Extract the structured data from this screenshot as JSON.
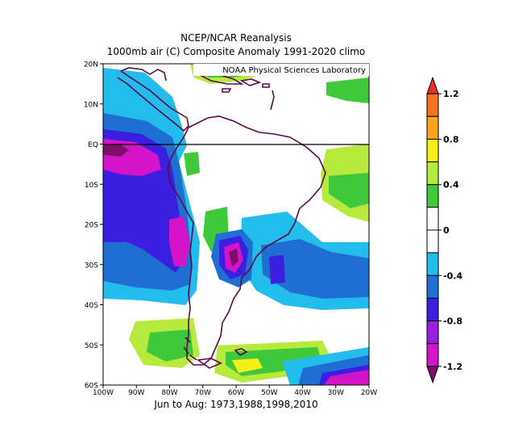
{
  "title_line1": "NCEP/NCAR Reanalysis",
  "title_line2": "1000mb air (C) Composite Anomaly 1991-2020 climo",
  "credit": "NOAA Physical Sciences Laboratory",
  "subtitle": "Jun to Aug: 1973,1988,1998,2010",
  "map": {
    "lon_range": [
      -100,
      -20
    ],
    "lat_range": [
      -60,
      20
    ],
    "lat_ticks": [
      "20N",
      "10N",
      "EQ",
      "10S",
      "20S",
      "30S",
      "40S",
      "50S",
      "60S"
    ],
    "lon_ticks": [
      "100W",
      "90W",
      "80W",
      "70W",
      "60W",
      "50W",
      "40W",
      "30W",
      "20W"
    ],
    "equator_line": true
  },
  "colorbar": {
    "labels": [
      "1.2",
      "0.8",
      "0.4",
      "0",
      "-0.4",
      "-0.8",
      "-1.2"
    ],
    "colors": [
      "#e8322b",
      "#f4731f",
      "#f9a61a",
      "#f6f01a",
      "#b8ea3e",
      "#3ec83a",
      "#ffffff",
      "#ffffff",
      "#22bdec",
      "#1f6fd3",
      "#3a1fe0",
      "#9b1de0",
      "#d414c8",
      "#7d0f6b"
    ],
    "color_keys": [
      "gt1.2",
      "1.0-1.2",
      "0.8-1.0",
      "0.6-0.8",
      "0.4-0.6",
      "0.2-0.4",
      "0-0.2",
      "-0.2-0",
      "-0.4--0.2",
      "-0.6--0.4",
      "-0.8--0.6",
      "-1.0--0.8",
      "-1.2--1.0",
      "lt-1.2"
    ]
  },
  "colors": {
    "coast": "#5a0a48",
    "frame": "#000000"
  }
}
